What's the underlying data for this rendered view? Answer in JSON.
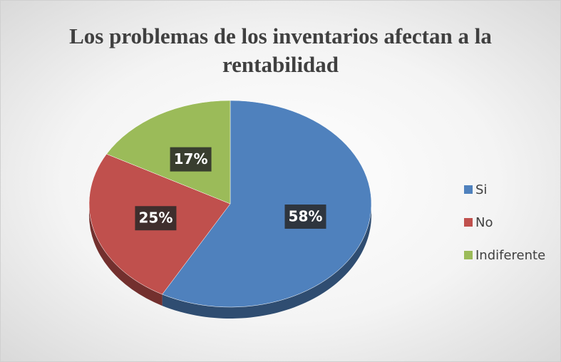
{
  "chart_data": {
    "type": "pie",
    "title": "Los problemas de los inventarios afectan a la rentabilidad",
    "categories": [
      "Si",
      "No",
      "Indiferente"
    ],
    "values": [
      58,
      25,
      17
    ],
    "value_labels": [
      "58%",
      "25%",
      "17%"
    ],
    "colors": [
      "#4f81bd",
      "#c0504d",
      "#9bbb59"
    ],
    "legend": "right"
  }
}
